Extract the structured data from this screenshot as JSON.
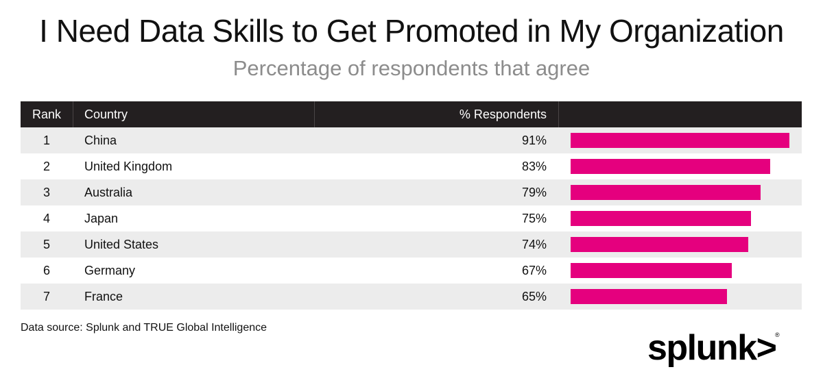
{
  "title": "I Need Data Skills to Get Promoted in My Organization",
  "subtitle": "Percentage of respondents that agree",
  "columns": {
    "rank": "Rank",
    "country": "Country",
    "pct": "% Respondents"
  },
  "source": "Data source: Splunk and TRUE Global Intelligence",
  "logo": {
    "text": "splunk>",
    "mark": "®"
  },
  "colors": {
    "bar": "#e5007e",
    "header_bg": "#231f20",
    "alt_row": "#ececec"
  },
  "chart_data": {
    "type": "table",
    "title": "I Need Data Skills to Get Promoted in My Organization",
    "subtitle": "Percentage of respondents that agree",
    "columns": [
      "Rank",
      "Country",
      "% Respondents"
    ],
    "rows": [
      {
        "rank": "1",
        "country": "China",
        "label": "91%",
        "value": 91
      },
      {
        "rank": "2",
        "country": "United Kingdom",
        "label": "83%",
        "value": 83
      },
      {
        "rank": "3",
        "country": "Australia",
        "label": "79%",
        "value": 79
      },
      {
        "rank": "4",
        "country": "Japan",
        "label": "75%",
        "value": 75
      },
      {
        "rank": "5",
        "country": "United States",
        "label": "74%",
        "value": 74
      },
      {
        "rank": "6",
        "country": "Germany",
        "label": "67%",
        "value": 67
      },
      {
        "rank": "7",
        "country": "France",
        "label": "65%",
        "value": 65
      }
    ]
  }
}
